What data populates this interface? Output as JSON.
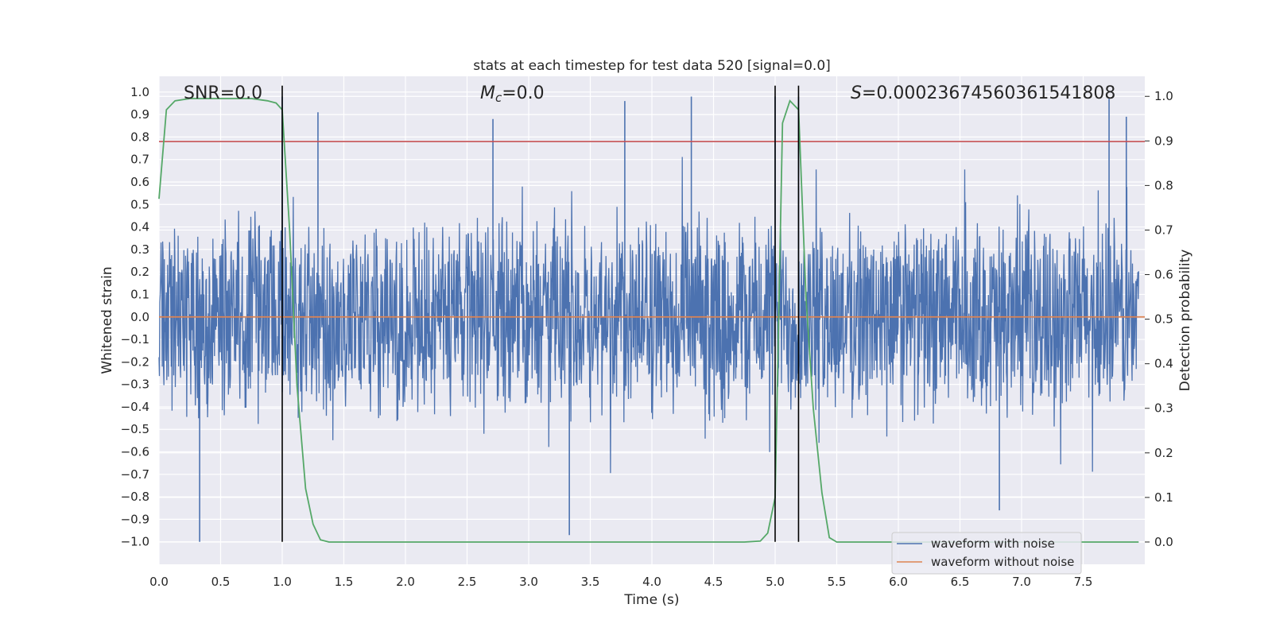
{
  "chart_data": {
    "type": "line",
    "title": "stats at each timestep for test data 520 [signal=0.0]",
    "xlabel": "Time (s)",
    "ylabel_left": "Whitened strain",
    "ylabel_right": "Detection probability",
    "xlim": [
      0.0,
      8.0
    ],
    "ylim_left": [
      -1.1,
      1.07
    ],
    "ylim_right": [
      -0.05,
      1.045
    ],
    "xticks": [
      "0.0",
      "0.5",
      "1.0",
      "1.5",
      "2.0",
      "2.5",
      "3.0",
      "3.5",
      "4.0",
      "4.5",
      "5.0",
      "5.5",
      "6.0",
      "6.5",
      "7.0",
      "7.5"
    ],
    "yticks_left": [
      "1.0",
      "0.9",
      "0.8",
      "0.7",
      "0.6",
      "0.5",
      "0.4",
      "0.3",
      "0.2",
      "0.1",
      "0.0",
      "−0.1",
      "−0.2",
      "−0.3",
      "−0.4",
      "−0.5",
      "−0.6",
      "−0.7",
      "−0.8",
      "−0.9",
      "−1.0"
    ],
    "yticks_right": [
      "1.0",
      "0.9",
      "0.8",
      "0.7",
      "0.6",
      "0.5",
      "0.4",
      "0.3",
      "0.2",
      "0.1",
      "0.0"
    ],
    "annotations": {
      "snr": "SNR=0.0",
      "mc_symbol": "M",
      "mc_sub": "c",
      "mc_value": "=0.0",
      "s_symbol": "S",
      "s_value": "=0.00023674560361541808"
    },
    "threshold_line": {
      "name": "threshold",
      "value": 0.78,
      "color": "#c44e52"
    },
    "vertical_lines": [
      1.0,
      5.0,
      5.19
    ],
    "series": [
      {
        "name": "waveform with noise",
        "color": "#4c72b0",
        "axis": "left",
        "description": "noise with amplitude envelope about ±0.5, peaks to about ±1.0",
        "spikes": [
          {
            "t": 0.33,
            "v": -1.0
          },
          {
            "t": 1.0,
            "v": 0.98
          },
          {
            "t": 1.29,
            "v": 0.91
          },
          {
            "t": 2.71,
            "v": 0.88
          },
          {
            "t": 3.33,
            "v": -0.97
          },
          {
            "t": 3.78,
            "v": 0.96
          },
          {
            "t": 4.32,
            "v": 0.98
          },
          {
            "t": 5.0,
            "v": 0.98
          },
          {
            "t": 5.19,
            "v": 0.98
          },
          {
            "t": 7.85,
            "v": 0.89
          },
          {
            "t": 7.71,
            "v": 0.97
          },
          {
            "t": 6.82,
            "v": -0.86
          }
        ]
      },
      {
        "name": "waveform without noise",
        "color": "#dd8452",
        "axis": "left",
        "x": [
          0.0,
          8.0
        ],
        "y": [
          0.0,
          0.0
        ]
      },
      {
        "name": "detection probability",
        "color": "#55a868",
        "axis": "right",
        "x": [
          0.0,
          0.06,
          0.13,
          0.25,
          0.5,
          0.75,
          0.88,
          0.95,
          1.0,
          1.06,
          1.12,
          1.19,
          1.25,
          1.31,
          1.38,
          1.5,
          2.0,
          3.0,
          4.0,
          4.75,
          4.88,
          4.94,
          5.0,
          5.06,
          5.12,
          5.19,
          5.25,
          5.31,
          5.38,
          5.44,
          5.5,
          6.0,
          7.0,
          7.95
        ],
        "y": [
          0.77,
          0.97,
          0.99,
          0.995,
          0.995,
          0.995,
          0.99,
          0.985,
          0.97,
          0.7,
          0.35,
          0.12,
          0.04,
          0.005,
          0.0,
          0.0,
          0.0,
          0.0,
          0.0,
          0.0,
          0.002,
          0.02,
          0.1,
          0.94,
          0.99,
          0.97,
          0.55,
          0.3,
          0.11,
          0.01,
          0.0,
          0.0,
          0.0,
          0.0
        ]
      }
    ],
    "legend": {
      "position": "lower-right",
      "entries": [
        {
          "label": "waveform with noise",
          "color": "#4c72b0"
        },
        {
          "label": "waveform without noise",
          "color": "#dd8452"
        }
      ]
    }
  }
}
